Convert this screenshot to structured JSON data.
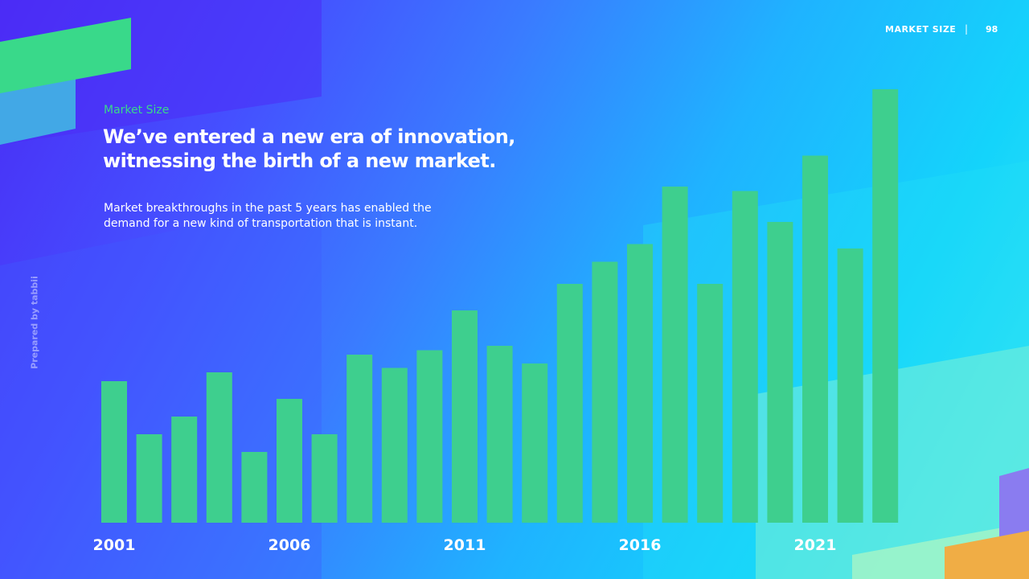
{
  "header": {
    "section_label": "MARKET SIZE",
    "separator": "|",
    "page_number": "98"
  },
  "eyebrow": "Market Size",
  "headline": {
    "line1": "We’ve entered a new era of innovation,",
    "line2": "witnessing the birth of a new market."
  },
  "body": {
    "line1": "Market breakthroughs in the past 5 years has enabled the",
    "line2": "demand for a new kind of transportation that is instant."
  },
  "side_label": "Prepared by tabbii",
  "colors": {
    "bar": "#3ecf8e",
    "accent_green": "#39d98a",
    "accent_orange": "#f0ad45",
    "accent_violet": "#8a7cf0"
  },
  "chart_data": {
    "type": "bar",
    "x": [
      2001,
      2002,
      2003,
      2004,
      2005,
      2006,
      2007,
      2008,
      2009,
      2010,
      2011,
      2012,
      2013,
      2014,
      2015,
      2016,
      2017,
      2018,
      2019,
      2020,
      2021,
      2022,
      2023
    ],
    "values": [
      32,
      20,
      24,
      34,
      16,
      28,
      20,
      38,
      35,
      39,
      48,
      40,
      36,
      54,
      59,
      63,
      76,
      54,
      75,
      68,
      83,
      62,
      98
    ],
    "tick_labels": [
      "2001",
      "2006",
      "2011",
      "2016",
      "2021"
    ],
    "ylim": [
      0,
      100
    ],
    "grid": false,
    "title": "",
    "xlabel": "",
    "ylabel": ""
  }
}
